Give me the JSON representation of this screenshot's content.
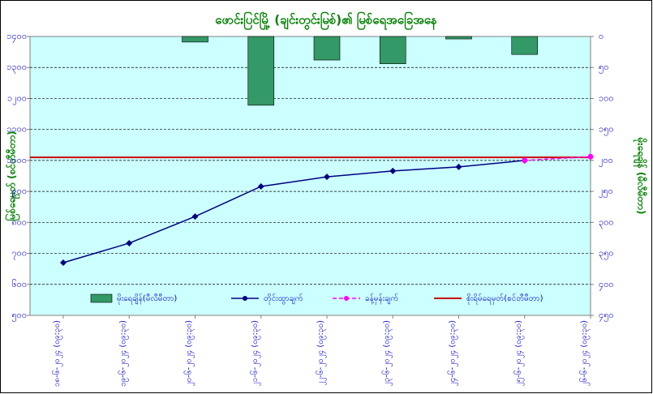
{
  "chart_data": {
    "type": "combo",
    "title": "ဖောင်းပြင်မြို့ (ချင်းတွင်းမြစ်)၏ မြစ်ရေအခြေအနေ",
    "ylabel": "မြစ်ရေမှတ် (စင်တီမီတာ)",
    "y2label": "မိုးရေချိန် (မီလီမီတာ)",
    "categories": [
      "၁၈-၆-၂၀၂၄ (၀၉:၃၀)",
      "၁၉-၆-၂၀၂၄ (၀၉:၃၀)",
      "၂၀-၆-၂၀၂၄ (၀၉:၃၀)",
      "၂၁-၆-၂၀၂၄ (၀၉:၃၀)",
      "၂၂-၆-၂၀၂၄ (၀၉:၃၀)",
      "၂၃-၆-၂၀၂၄ (၀၉:၃၀)",
      "၂၄-၆-၂၀၂၄ (၀၉:၃၀)",
      "၂၅-၆-၂၀၂၄ (၀၉:၃၀)",
      "၂၆-၆-၂၀၂၄ (၀၉:၃၀)"
    ],
    "ylim": [
      500,
      1400
    ],
    "yticks": [
      {
        "value": 500,
        "label": "၅၀၀"
      },
      {
        "value": 600,
        "label": "၆၀၀"
      },
      {
        "value": 700,
        "label": "၇၀၀"
      },
      {
        "value": 800,
        "label": "၈၀၀"
      },
      {
        "value": 900,
        "label": "၉၀၀"
      },
      {
        "value": 1000,
        "label": "၁၀၀၀"
      },
      {
        "value": 1100,
        "label": "၁၁၀၀"
      },
      {
        "value": 1200,
        "label": "၁၂၀၀"
      },
      {
        "value": 1300,
        "label": "၁၃၀၀"
      },
      {
        "value": 1400,
        "label": "၁၄၀၀"
      }
    ],
    "y2lim": [
      450,
      0
    ],
    "y2ticks": [
      {
        "value": 0,
        "label": "၀"
      },
      {
        "value": 50,
        "label": "၅၀"
      },
      {
        "value": 100,
        "label": "၁၀၀"
      },
      {
        "value": 150,
        "label": "၁၅၀"
      },
      {
        "value": 200,
        "label": "၂၀၀"
      },
      {
        "value": 250,
        "label": "၂၅၀"
      },
      {
        "value": 300,
        "label": "၃၀၀"
      },
      {
        "value": 350,
        "label": "၃၅၀"
      },
      {
        "value": 400,
        "label": "၄၀၀"
      },
      {
        "value": 450,
        "label": "၄၅၀"
      }
    ],
    "grid": true,
    "series": [
      {
        "name": "မိုးရေချိန်(မီလီမီတာ)",
        "type": "bar",
        "axis": "y2",
        "color": "#339966",
        "values": [
          0,
          0,
          9,
          111,
          38,
          44,
          4,
          29,
          null
        ]
      },
      {
        "name": "တိုင်းထွာချက်",
        "type": "line",
        "color": "#000080",
        "values": [
          670,
          733,
          819,
          916,
          947,
          966,
          979,
          1000,
          null
        ]
      },
      {
        "name": "ခန့်မှန်းချက်",
        "type": "line",
        "dashed": true,
        "color": "#ff00ff",
        "values": [
          null,
          null,
          null,
          null,
          null,
          null,
          null,
          1000,
          1012
        ]
      }
    ],
    "danger_level": {
      "name": "စိုးရိမ်ရေမှတ်(စင်တီမီတာ)",
      "color": "#cc0000",
      "value": 1010
    }
  }
}
